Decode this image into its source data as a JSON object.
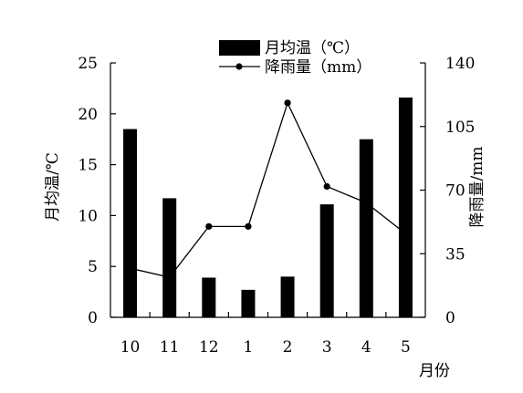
{
  "chart_data": {
    "type": "bar+line",
    "categories": [
      "10",
      "11",
      "12",
      "1",
      "2",
      "3",
      "4",
      "5"
    ],
    "xlabel": "月份",
    "series": [
      {
        "name": "月均温（℃）",
        "kind": "bar",
        "axis": "left",
        "color": "#000000",
        "values": [
          18.5,
          11.7,
          3.9,
          2.7,
          4.0,
          11.1,
          17.5,
          21.6
        ]
      },
      {
        "name": "降雨量（mm）",
        "kind": "line",
        "axis": "right",
        "color": "#000000",
        "values": [
          27,
          22,
          50,
          50,
          118,
          72,
          63,
          46
        ]
      }
    ],
    "left_axis": {
      "label": "月均温/℃",
      "range": [
        0,
        25
      ],
      "ticks": [
        "0",
        "5",
        "10",
        "15",
        "20",
        "25"
      ]
    },
    "right_axis": {
      "label": "降雨量/mm",
      "range": [
        0,
        140
      ],
      "ticks": [
        "0",
        "35",
        "70",
        "105",
        "140"
      ]
    },
    "grid": false,
    "legend_position": "top-center"
  }
}
